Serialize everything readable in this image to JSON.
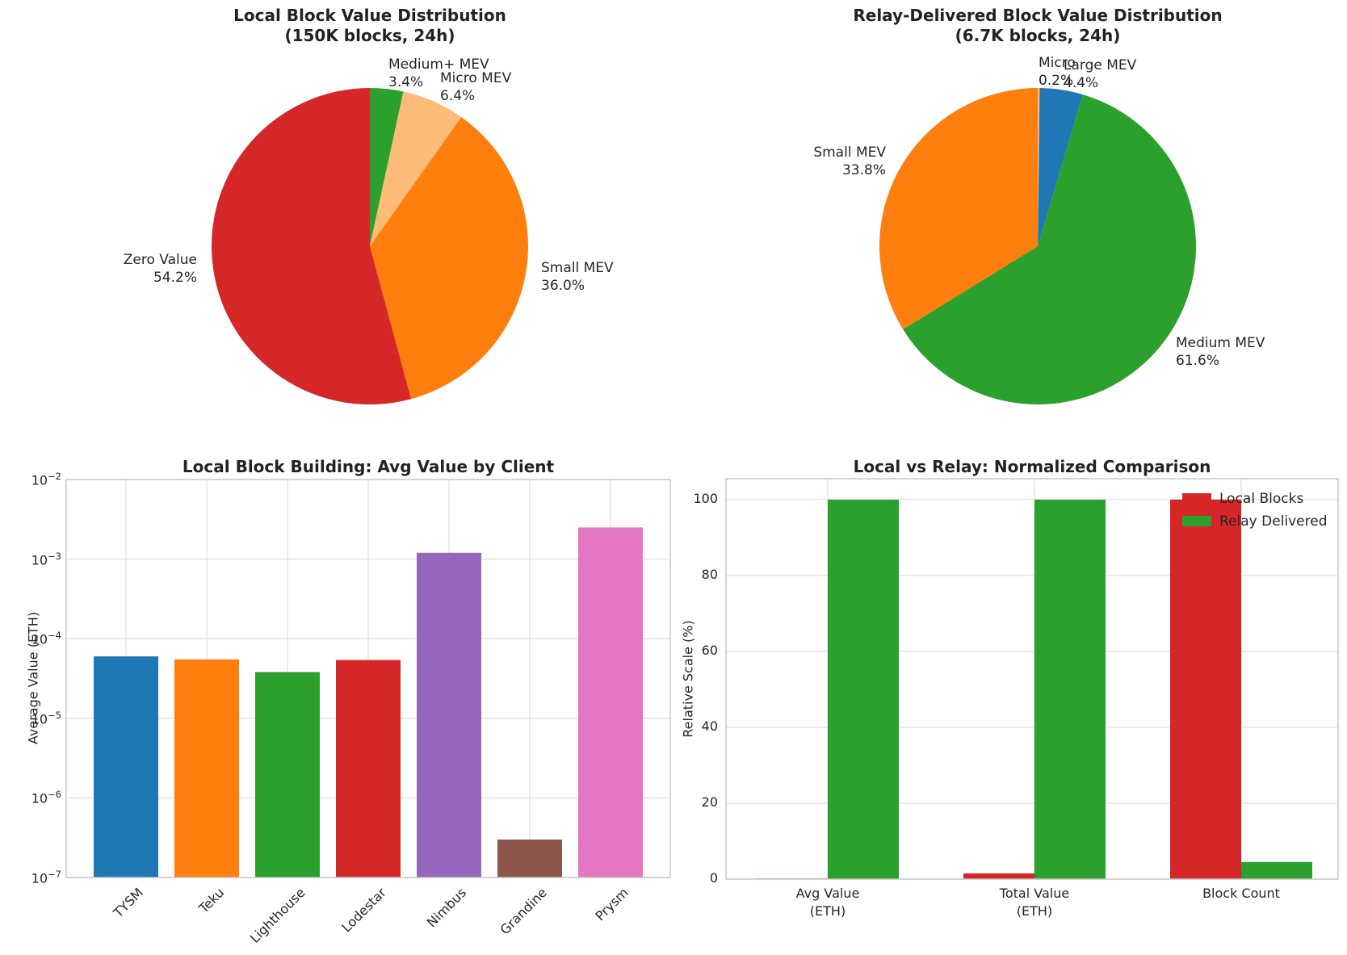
{
  "figure": {
    "background": "#ffffff",
    "text_color": "#262626",
    "title_color": "#222222",
    "grid_color": "#e0e0e0",
    "spine_color": "#c8c8c8"
  },
  "chart_data": [
    {
      "type": "pie",
      "title_lines": [
        "Local Block Value Distribution",
        "(150K blocks, 24h)"
      ],
      "start_angle_deg": 90,
      "direction": "clockwise",
      "slices": [
        {
          "label": "Medium+ MEV",
          "value_pct": 3.4,
          "pct_label": "3.4%",
          "color": "#2ca02c"
        },
        {
          "label": "Micro MEV",
          "value_pct": 6.4,
          "pct_label": "6.4%",
          "color": "#ffbb78"
        },
        {
          "label": "Small MEV",
          "value_pct": 36.0,
          "pct_label": "36.0%",
          "color": "#ff7f0e"
        },
        {
          "label": "Zero Value",
          "value_pct": 54.2,
          "pct_label": "54.2%",
          "color": "#d62728"
        }
      ]
    },
    {
      "type": "pie",
      "title_lines": [
        "Relay-Delivered Block Value Distribution",
        "(6.7K blocks, 24h)"
      ],
      "start_angle_deg": 90,
      "direction": "clockwise",
      "slices": [
        {
          "label": "Micro",
          "value_pct": 0.2,
          "pct_label": "0.2%",
          "color": "#ffbb78"
        },
        {
          "label": "Large MEV",
          "value_pct": 4.4,
          "pct_label": "4.4%",
          "color": "#1f77b4"
        },
        {
          "label": "Medium MEV",
          "value_pct": 61.6,
          "pct_label": "61.6%",
          "color": "#2ca02c"
        },
        {
          "label": "Small MEV",
          "value_pct": 33.8,
          "pct_label": "33.8%",
          "color": "#ff7f0e"
        }
      ]
    },
    {
      "type": "bar",
      "title": "Local Block Building: Avg Value by Client",
      "ylabel": "Average Value (ETH)",
      "yscale": "log",
      "ylim": [
        1e-07,
        0.01
      ],
      "ytick_exponents": [
        -2,
        -3,
        -4,
        -5,
        -6,
        -7
      ],
      "categories": [
        "TYSM",
        "Teku",
        "Lighthouse",
        "Lodestar",
        "Nimbus",
        "Grandine",
        "Prysm"
      ],
      "values": [
        6e-05,
        5.5e-05,
        3.8e-05,
        5.4e-05,
        0.0012,
        3e-07,
        0.0025
      ],
      "bar_colors": [
        "#1f77b4",
        "#ff7f0e",
        "#2ca02c",
        "#d62728",
        "#9467bd",
        "#8c564b",
        "#e377c2"
      ]
    },
    {
      "type": "grouped_bar",
      "title": "Local vs Relay: Normalized Comparison",
      "ylabel": "Relative Scale (%)",
      "ylim": [
        0,
        105.5
      ],
      "yticks": [
        0,
        20,
        40,
        60,
        80,
        100
      ],
      "categories": [
        [
          "Avg Value",
          "(ETH)"
        ],
        [
          "Total Value",
          "(ETH)"
        ],
        [
          "Block Count"
        ]
      ],
      "series": [
        {
          "name": "Local Blocks",
          "color": "#d62728",
          "values": [
            0.2,
            1.5,
            100
          ]
        },
        {
          "name": "Relay Delivered",
          "color": "#2ca02c",
          "values": [
            100,
            100,
            4.5
          ]
        }
      ],
      "legend_position": "upper right",
      "grid": true
    }
  ]
}
